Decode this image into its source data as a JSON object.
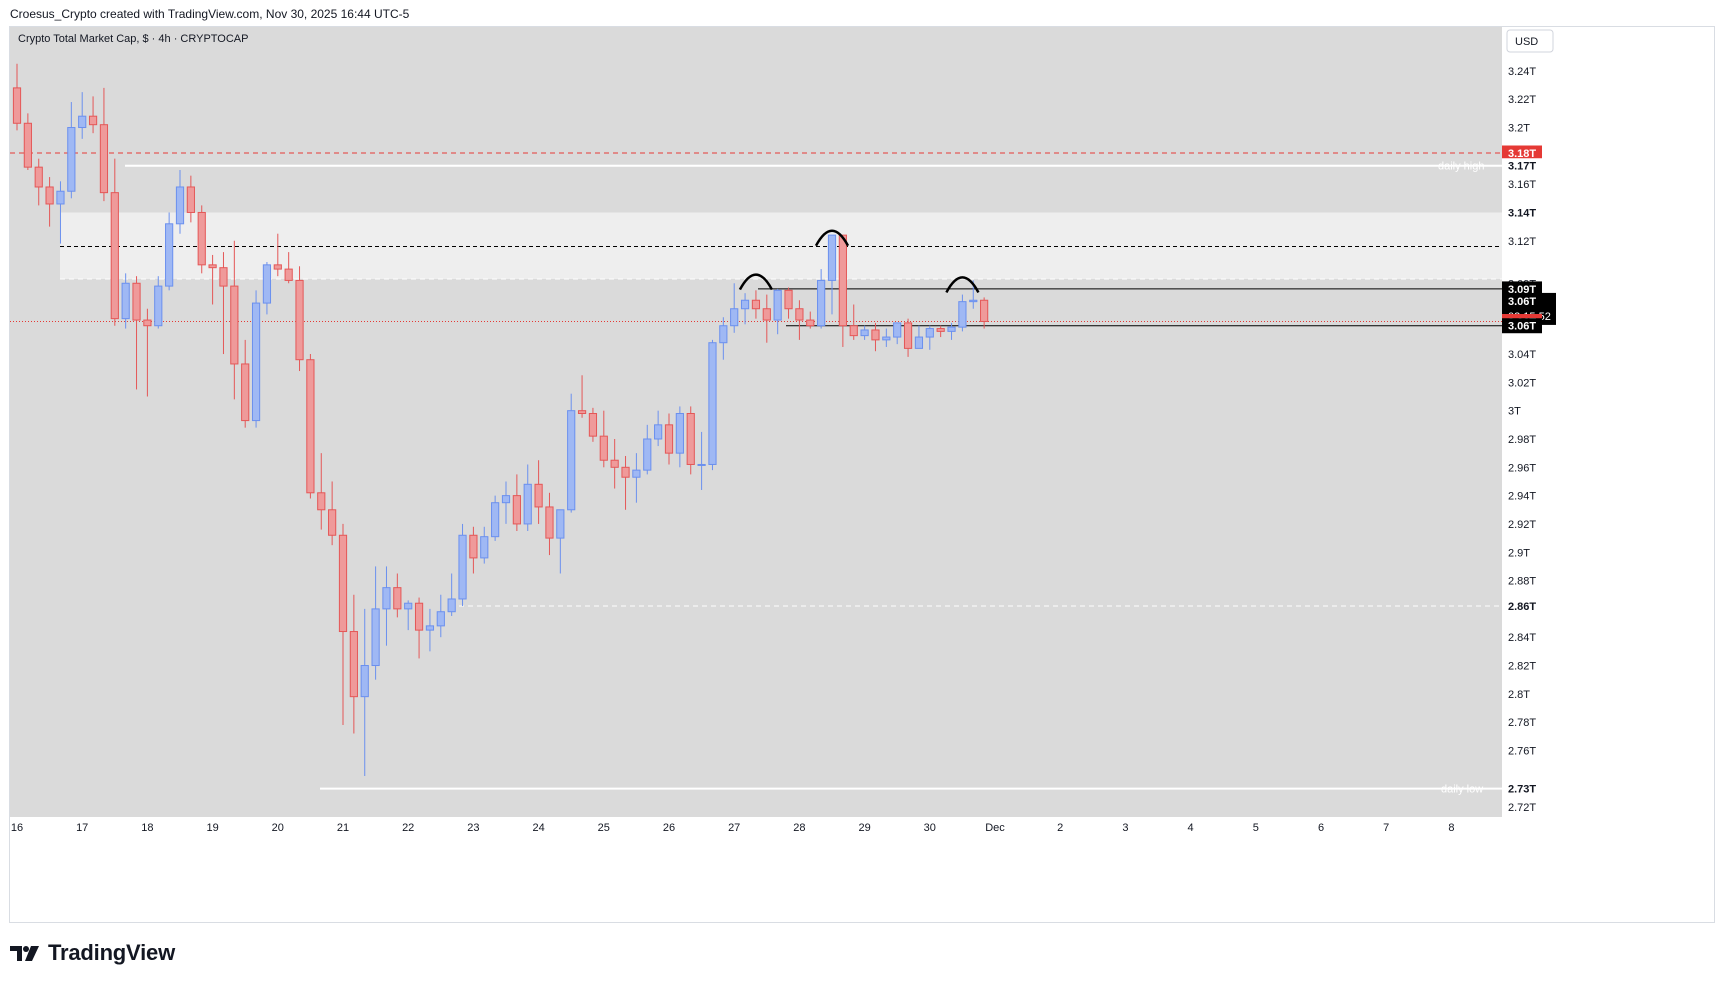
{
  "header_text": "Croesus_Crypto created with TradingView.com, Nov 30, 2025 16:44 UTC-5",
  "brand": {
    "wordmark": "TradingView",
    "logo_text": "TV"
  },
  "colors": {
    "pane_bg": "#dadada",
    "up": "#6b90ee",
    "up_fill": "#9fb8f4",
    "down": "#e45757",
    "down_fill": "#ef9a9a",
    "zone": "#eeeeee",
    "red_line": "#e53935",
    "black": "#000000",
    "white": "#ffffff"
  },
  "chart_data": {
    "type": "candlestick",
    "title": "Crypto Total Market Cap, $ · 4h · CRYPTOCAP",
    "currency": "USD",
    "grid": false,
    "ylim": [
      2.713,
      3.271
    ],
    "y_ticks": [
      "3.24T",
      "3.22T",
      "3.2T",
      "3.16T",
      "3.14T",
      "3.12T",
      "3.09T",
      "3.04T",
      "3.02T",
      "3T",
      "2.98T",
      "2.96T",
      "2.94T",
      "2.92T",
      "2.9T",
      "2.88T",
      "2.84T",
      "2.82T",
      "2.8T",
      "2.78T",
      "2.76T",
      "2.72T"
    ],
    "y_tick_values": [
      3.24,
      3.22,
      3.2,
      3.16,
      3.14,
      3.12,
      3.09,
      3.04,
      3.02,
      3.0,
      2.98,
      2.96,
      2.94,
      2.92,
      2.9,
      2.88,
      2.84,
      2.82,
      2.8,
      2.78,
      2.76,
      2.72
    ],
    "x_labels": [
      "16",
      "17",
      "18",
      "19",
      "20",
      "21",
      "22",
      "23",
      "24",
      "25",
      "26",
      "27",
      "28",
      "29",
      "30",
      "Dec",
      "2",
      "3",
      "4",
      "5",
      "6",
      "7",
      "8"
    ],
    "x_label_days": [
      0,
      1,
      2,
      3,
      4,
      5,
      6,
      7,
      8,
      9,
      10,
      11,
      12,
      13,
      14,
      15,
      16,
      17,
      18,
      19,
      20,
      21,
      22
    ],
    "candles_ohlc_from_nov16": [
      [
        3.228,
        3.245,
        3.198,
        3.203
      ],
      [
        3.203,
        3.21,
        3.17,
        3.172
      ],
      [
        3.172,
        3.178,
        3.145,
        3.158
      ],
      [
        3.158,
        3.165,
        3.13,
        3.146
      ],
      [
        3.146,
        3.162,
        3.118,
        3.155
      ],
      [
        3.155,
        3.218,
        3.15,
        3.2
      ],
      [
        3.2,
        3.225,
        3.192,
        3.208
      ],
      [
        3.208,
        3.222,
        3.196,
        3.202
      ],
      [
        3.202,
        3.228,
        3.148,
        3.154
      ],
      [
        3.154,
        3.178,
        3.06,
        3.065
      ],
      [
        3.065,
        3.097,
        3.058,
        3.09
      ],
      [
        3.09,
        3.095,
        3.015,
        3.064
      ],
      [
        3.064,
        3.072,
        3.01,
        3.06
      ],
      [
        3.06,
        3.095,
        3.058,
        3.088
      ],
      [
        3.088,
        3.14,
        3.085,
        3.132
      ],
      [
        3.132,
        3.17,
        3.125,
        3.158
      ],
      [
        3.158,
        3.166,
        3.133,
        3.14
      ],
      [
        3.14,
        3.145,
        3.097,
        3.103
      ],
      [
        3.103,
        3.11,
        3.075,
        3.101
      ],
      [
        3.101,
        3.112,
        3.04,
        3.088
      ],
      [
        3.088,
        3.12,
        3.008,
        3.033
      ],
      [
        3.033,
        3.05,
        2.988,
        2.993
      ],
      [
        2.993,
        3.085,
        2.988,
        3.076
      ],
      [
        3.076,
        3.105,
        3.068,
        3.103
      ],
      [
        3.103,
        3.125,
        3.095,
        3.1
      ],
      [
        3.1,
        3.112,
        3.09,
        3.092
      ],
      [
        3.092,
        3.102,
        3.028,
        3.036
      ],
      [
        3.036,
        3.04,
        2.938,
        2.942
      ],
      [
        2.942,
        2.97,
        2.916,
        2.93
      ],
      [
        2.93,
        2.95,
        2.905,
        2.912
      ],
      [
        2.912,
        2.92,
        2.778,
        2.844
      ],
      [
        2.844,
        2.87,
        2.772,
        2.798
      ],
      [
        2.798,
        2.86,
        2.742,
        2.82
      ],
      [
        2.82,
        2.89,
        2.81,
        2.86
      ],
      [
        2.86,
        2.89,
        2.834,
        2.875
      ],
      [
        2.875,
        2.885,
        2.854,
        2.86
      ],
      [
        2.86,
        2.866,
        2.845,
        2.864
      ],
      [
        2.864,
        2.868,
        2.825,
        2.845
      ],
      [
        2.845,
        2.86,
        2.83,
        2.848
      ],
      [
        2.848,
        2.87,
        2.84,
        2.858
      ],
      [
        2.858,
        2.885,
        2.855,
        2.867
      ],
      [
        2.867,
        2.92,
        2.862,
        2.912
      ],
      [
        2.912,
        2.918,
        2.885,
        2.896
      ],
      [
        2.896,
        2.918,
        2.892,
        2.911
      ],
      [
        2.911,
        2.94,
        2.908,
        2.935
      ],
      [
        2.935,
        2.95,
        2.92,
        2.94
      ],
      [
        2.94,
        2.955,
        2.915,
        2.92
      ],
      [
        2.92,
        2.962,
        2.915,
        2.948
      ],
      [
        2.948,
        2.965,
        2.92,
        2.932
      ],
      [
        2.932,
        2.942,
        2.898,
        2.91
      ],
      [
        2.91,
        2.93,
        2.885,
        2.93
      ],
      [
        2.93,
        3.012,
        2.928,
        3.0
      ],
      [
        3.0,
        3.025,
        2.995,
        2.998
      ],
      [
        2.998,
        3.002,
        2.978,
        2.982
      ],
      [
        2.982,
        3.0,
        2.96,
        2.965
      ],
      [
        2.965,
        2.98,
        2.945,
        2.96
      ],
      [
        2.96,
        2.968,
        2.93,
        2.953
      ],
      [
        2.953,
        2.97,
        2.935,
        2.958
      ],
      [
        2.958,
        2.99,
        2.955,
        2.98
      ],
      [
        2.98,
        3.0,
        2.975,
        2.99
      ],
      [
        2.99,
        2.998,
        2.962,
        2.97
      ],
      [
        2.97,
        3.003,
        2.96,
        2.998
      ],
      [
        2.998,
        3.003,
        2.955,
        2.962
      ],
      [
        2.962,
        2.985,
        2.944,
        2.962
      ],
      [
        2.962,
        3.05,
        2.958,
        3.048
      ],
      [
        3.048,
        3.066,
        3.036,
        3.06
      ],
      [
        3.06,
        3.09,
        3.055,
        3.072
      ],
      [
        3.072,
        3.083,
        3.061,
        3.078
      ],
      [
        3.078,
        3.085,
        3.065,
        3.072
      ],
      [
        3.072,
        3.082,
        3.048,
        3.064
      ],
      [
        3.064,
        3.086,
        3.054,
        3.085
      ],
      [
        3.085,
        3.087,
        3.065,
        3.072
      ],
      [
        3.072,
        3.078,
        3.05,
        3.064
      ],
      [
        3.064,
        3.07,
        3.058,
        3.06
      ],
      [
        3.06,
        3.1,
        3.058,
        3.092
      ],
      [
        3.092,
        3.118,
        3.068,
        3.124
      ],
      [
        3.124,
        3.1,
        3.045,
        3.06
      ],
      [
        3.06,
        3.075,
        3.05,
        3.053
      ],
      [
        3.053,
        3.06,
        3.05,
        3.057
      ],
      [
        3.057,
        3.062,
        3.042,
        3.05
      ],
      [
        3.05,
        3.058,
        3.045,
        3.052
      ],
      [
        3.052,
        3.061,
        3.047,
        3.062
      ],
      [
        3.062,
        3.065,
        3.038,
        3.044
      ],
      [
        3.044,
        3.06,
        3.045,
        3.052
      ],
      [
        3.052,
        3.06,
        3.043,
        3.058
      ],
      [
        3.058,
        3.06,
        3.052,
        3.056
      ],
      [
        3.056,
        3.062,
        3.05,
        3.059
      ],
      [
        3.059,
        3.082,
        3.056,
        3.077
      ],
      [
        3.077,
        3.092,
        3.072,
        3.078
      ],
      [
        3.078,
        3.08,
        3.058,
        3.063
      ]
    ],
    "levels": [
      {
        "name": "daily high",
        "value": 3.173,
        "style": "white-solid",
        "label": "daily high",
        "axis_label": "3.17T"
      },
      {
        "name": "daily low",
        "value": 2.733,
        "style": "white-solid",
        "label": "daily low",
        "axis_label": "2.73T"
      },
      {
        "name": "red dashed",
        "value": 3.182,
        "style": "red-dashed",
        "axis_label": "3.18T"
      },
      {
        "name": "zone top",
        "value": 3.14,
        "axis_label": "3.14T"
      },
      {
        "name": "zone bottom",
        "value": 3.093,
        "axis_label": "3.09T"
      },
      {
        "name": "range top",
        "value": 3.086,
        "style": "black-solid",
        "axis_label": "3.09T"
      },
      {
        "name": "range bottom",
        "value": 3.06,
        "style": "black-solid",
        "axis_label": "3.06T"
      },
      {
        "name": "zone mid",
        "value": 3.116,
        "style": "black-dashed"
      },
      {
        "name": "white dashed",
        "value": 2.862,
        "style": "white-dashed",
        "axis_label": "2.86T"
      }
    ],
    "last_price": {
      "value": "3.06T",
      "countdown": "02:15:52"
    },
    "current_price_label": "3.06T"
  }
}
